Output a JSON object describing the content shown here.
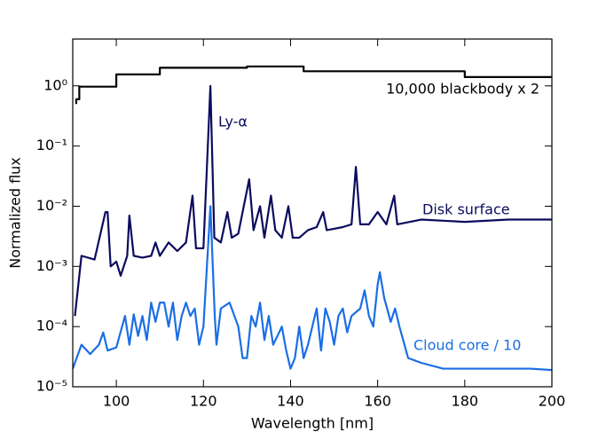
{
  "chart_data": {
    "type": "line",
    "xlabel": "Wavelength [nm]",
    "ylabel": "Normalized flux",
    "xlim": [
      90,
      200
    ],
    "xticks": [
      100,
      120,
      140,
      160,
      180,
      200
    ],
    "ylim": [
      1e-05,
      6
    ],
    "yticks": [
      {
        "value": 1e-05,
        "label": "10⁻⁵"
      },
      {
        "value": 0.0001,
        "label": "10⁻⁴"
      },
      {
        "value": 0.001,
        "label": "10⁻³"
      },
      {
        "value": 0.01,
        "label": "10⁻²"
      },
      {
        "value": 0.1,
        "label": "10⁻¹"
      },
      {
        "value": 1,
        "label": "10⁰"
      }
    ],
    "log_y": true,
    "annotations": [
      "Ly-α"
    ],
    "series": [
      {
        "name": "10,000 blackbody x 2",
        "color": "#000000",
        "x": [
          90.8,
          90.8,
          91.5,
          91.5,
          100,
          100,
          110,
          110,
          130,
          130,
          143,
          143,
          180,
          180,
          200
        ],
        "values": [
          0.5,
          0.6,
          0.6,
          0.97,
          0.97,
          1.55,
          1.55,
          2.0,
          2.0,
          2.1,
          2.1,
          1.75,
          1.75,
          1.4,
          1.4
        ]
      },
      {
        "name": "Disk surface",
        "color": "#0b0b5e",
        "x": [
          90.5,
          92,
          95,
          97.5,
          98,
          98.7,
          100,
          101,
          102.5,
          103,
          104,
          106,
          108,
          109,
          110,
          112,
          114,
          116,
          117.5,
          118.3,
          120,
          121.6,
          122.5,
          124,
          125.5,
          126.5,
          128,
          130.5,
          131.5,
          133,
          134,
          135.5,
          136.5,
          138,
          139.5,
          140.5,
          142,
          144,
          146,
          147.5,
          148.3,
          152,
          154,
          155,
          156,
          158,
          160,
          162,
          163.8,
          164.5,
          170,
          180,
          190,
          200
        ],
        "values": [
          0.00015,
          0.0015,
          0.0013,
          0.008,
          0.008,
          0.001,
          0.0012,
          0.0007,
          0.0015,
          0.007,
          0.0015,
          0.0014,
          0.0015,
          0.0025,
          0.0015,
          0.0025,
          0.0018,
          0.0025,
          0.015,
          0.002,
          0.002,
          1.0,
          0.003,
          0.0025,
          0.008,
          0.003,
          0.0035,
          0.028,
          0.004,
          0.01,
          0.003,
          0.015,
          0.004,
          0.003,
          0.01,
          0.003,
          0.003,
          0.004,
          0.0045,
          0.008,
          0.004,
          0.0045,
          0.005,
          0.045,
          0.005,
          0.005,
          0.008,
          0.005,
          0.015,
          0.005,
          0.006,
          0.0055,
          0.006,
          0.006
        ]
      },
      {
        "name": "Cloud core / 10",
        "color": "#1a6ee6",
        "x": [
          90,
          92,
          94,
          96,
          97,
          98,
          100,
          102,
          103,
          104,
          105,
          106,
          107,
          108,
          109,
          110,
          111,
          112,
          113,
          114,
          115,
          116,
          117,
          118,
          119,
          120,
          121.6,
          122.6,
          123,
          124,
          126,
          128,
          129,
          130,
          131,
          132,
          133,
          134,
          135,
          136,
          137,
          138,
          139,
          140,
          141,
          142,
          143,
          144,
          145,
          146,
          147,
          148,
          149,
          150,
          151,
          152,
          153,
          154,
          156,
          157,
          158,
          159,
          160,
          160.5,
          161.5,
          163,
          164,
          165,
          167,
          170,
          175,
          185,
          195,
          200
        ],
        "values": [
          2e-05,
          5e-05,
          3.5e-05,
          5e-05,
          8e-05,
          4e-05,
          4.5e-05,
          0.00015,
          5e-05,
          0.00016,
          7e-05,
          0.00015,
          6e-05,
          0.00025,
          0.00012,
          0.00025,
          0.00025,
          0.0001,
          0.00025,
          6e-05,
          0.00015,
          0.00025,
          0.00015,
          0.0002,
          5e-05,
          0.0001,
          0.01,
          0.00015,
          5e-05,
          0.0002,
          0.00025,
          0.0001,
          3e-05,
          3e-05,
          0.00015,
          0.0001,
          0.00025,
          6e-05,
          0.00015,
          5e-05,
          7e-05,
          0.0001,
          4e-05,
          2e-05,
          3e-05,
          0.0001,
          3e-05,
          5e-05,
          0.0001,
          0.0002,
          4e-05,
          0.0002,
          0.00012,
          5e-05,
          0.00015,
          0.0002,
          8e-05,
          0.00015,
          0.0002,
          0.0004,
          0.00015,
          0.0001,
          0.0005,
          0.0008,
          0.0003,
          0.00012,
          0.0002,
          0.0001,
          3e-05,
          2.5e-05,
          2e-05,
          2e-05,
          2e-05,
          1.9e-05
        ]
      }
    ]
  }
}
